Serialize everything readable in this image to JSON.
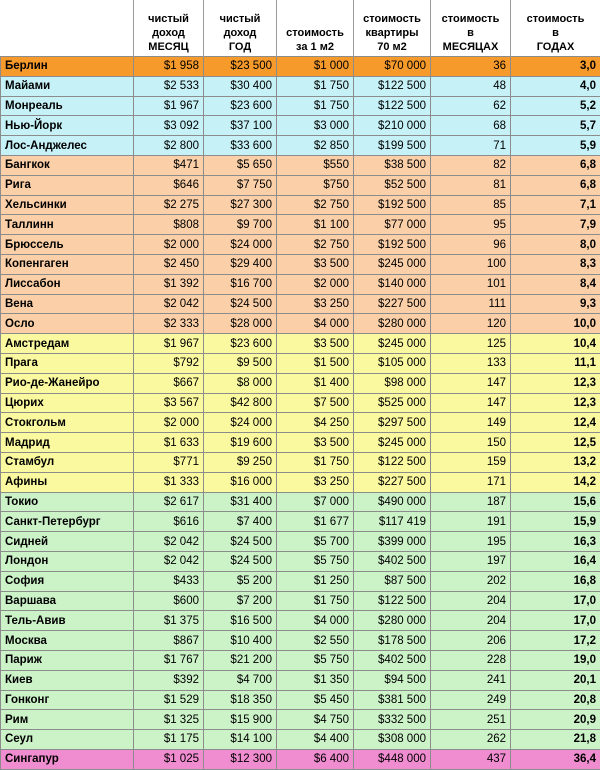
{
  "headers": {
    "city": "",
    "net_month": "чистый\nдоход\nМЕСЯЦ",
    "net_year": "чистый\nдоход\nГОД",
    "price_m2": "стоимость\nза 1 м2",
    "price_flat": "стоимость\nквартиры\n70 м2",
    "months": "стоимость\nв\nМЕСЯЦАХ",
    "years": "стоимость\nв\nГОДАХ"
  },
  "colors": {
    "orange": "#f79a2c",
    "cyan": "#c5f1f7",
    "peach": "#fbcfa7",
    "yellow": "#fbf9a0",
    "green": "#ccf2c8",
    "pink": "#f08cd0"
  },
  "rows": [
    {
      "city": "Берлин",
      "net_month": "$1 958",
      "net_year": "$23 500",
      "price_m2": "$1 000",
      "price_flat": "$70 000",
      "months": "36",
      "years": "3,0",
      "band": "orange"
    },
    {
      "city": "Майами",
      "net_month": "$2 533",
      "net_year": "$30 400",
      "price_m2": "$1 750",
      "price_flat": "$122 500",
      "months": "48",
      "years": "4,0",
      "band": "cyan"
    },
    {
      "city": "Монреаль",
      "net_month": "$1 967",
      "net_year": "$23 600",
      "price_m2": "$1 750",
      "price_flat": "$122 500",
      "months": "62",
      "years": "5,2",
      "band": "cyan"
    },
    {
      "city": "Нью-Йорк",
      "net_month": "$3 092",
      "net_year": "$37 100",
      "price_m2": "$3 000",
      "price_flat": "$210 000",
      "months": "68",
      "years": "5,7",
      "band": "cyan"
    },
    {
      "city": "Лос-Анджелес",
      "net_month": "$2 800",
      "net_year": "$33 600",
      "price_m2": "$2 850",
      "price_flat": "$199 500",
      "months": "71",
      "years": "5,9",
      "band": "cyan"
    },
    {
      "city": "Бангкок",
      "net_month": "$471",
      "net_year": "$5 650",
      "price_m2": "$550",
      "price_flat": "$38 500",
      "months": "82",
      "years": "6,8",
      "band": "peach"
    },
    {
      "city": "Рига",
      "net_month": "$646",
      "net_year": "$7 750",
      "price_m2": "$750",
      "price_flat": "$52 500",
      "months": "81",
      "years": "6,8",
      "band": "peach"
    },
    {
      "city": "Хельсинки",
      "net_month": "$2 275",
      "net_year": "$27 300",
      "price_m2": "$2 750",
      "price_flat": "$192 500",
      "months": "85",
      "years": "7,1",
      "band": "peach"
    },
    {
      "city": "Таллинн",
      "net_month": "$808",
      "net_year": "$9 700",
      "price_m2": "$1 100",
      "price_flat": "$77 000",
      "months": "95",
      "years": "7,9",
      "band": "peach"
    },
    {
      "city": "Брюссель",
      "net_month": "$2 000",
      "net_year": "$24 000",
      "price_m2": "$2 750",
      "price_flat": "$192 500",
      "months": "96",
      "years": "8,0",
      "band": "peach"
    },
    {
      "city": "Копенгаген",
      "net_month": "$2 450",
      "net_year": "$29 400",
      "price_m2": "$3 500",
      "price_flat": "$245 000",
      "months": "100",
      "years": "8,3",
      "band": "peach"
    },
    {
      "city": "Лиссабон",
      "net_month": "$1 392",
      "net_year": "$16 700",
      "price_m2": "$2 000",
      "price_flat": "$140 000",
      "months": "101",
      "years": "8,4",
      "band": "peach"
    },
    {
      "city": "Вена",
      "net_month": "$2 042",
      "net_year": "$24 500",
      "price_m2": "$3 250",
      "price_flat": "$227 500",
      "months": "111",
      "years": "9,3",
      "band": "peach"
    },
    {
      "city": "Осло",
      "net_month": "$2 333",
      "net_year": "$28 000",
      "price_m2": "$4 000",
      "price_flat": "$280 000",
      "months": "120",
      "years": "10,0",
      "band": "peach"
    },
    {
      "city": "Амстредам",
      "net_month": "$1 967",
      "net_year": "$23 600",
      "price_m2": "$3 500",
      "price_flat": "$245 000",
      "months": "125",
      "years": "10,4",
      "band": "yellow"
    },
    {
      "city": "Прага",
      "net_month": "$792",
      "net_year": "$9 500",
      "price_m2": "$1 500",
      "price_flat": "$105 000",
      "months": "133",
      "years": "11,1",
      "band": "yellow"
    },
    {
      "city": "Рио-де-Жанейро",
      "net_month": "$667",
      "net_year": "$8 000",
      "price_m2": "$1 400",
      "price_flat": "$98 000",
      "months": "147",
      "years": "12,3",
      "band": "yellow"
    },
    {
      "city": "Цюрих",
      "net_month": "$3 567",
      "net_year": "$42 800",
      "price_m2": "$7 500",
      "price_flat": "$525 000",
      "months": "147",
      "years": "12,3",
      "band": "yellow"
    },
    {
      "city": "Стокгольм",
      "net_month": "$2 000",
      "net_year": "$24 000",
      "price_m2": "$4 250",
      "price_flat": "$297 500",
      "months": "149",
      "years": "12,4",
      "band": "yellow"
    },
    {
      "city": "Мадрид",
      "net_month": "$1 633",
      "net_year": "$19 600",
      "price_m2": "$3 500",
      "price_flat": "$245 000",
      "months": "150",
      "years": "12,5",
      "band": "yellow"
    },
    {
      "city": "Стамбул",
      "net_month": "$771",
      "net_year": "$9 250",
      "price_m2": "$1 750",
      "price_flat": "$122 500",
      "months": "159",
      "years": "13,2",
      "band": "yellow"
    },
    {
      "city": "Афины",
      "net_month": "$1 333",
      "net_year": "$16 000",
      "price_m2": "$3 250",
      "price_flat": "$227 500",
      "months": "171",
      "years": "14,2",
      "band": "yellow"
    },
    {
      "city": "Токио",
      "net_month": "$2 617",
      "net_year": "$31 400",
      "price_m2": "$7 000",
      "price_flat": "$490 000",
      "months": "187",
      "years": "15,6",
      "band": "green"
    },
    {
      "city": "Санкт-Петербург",
      "net_month": "$616",
      "net_year": "$7 400",
      "price_m2": "$1 677",
      "price_flat": "$117 419",
      "months": "191",
      "years": "15,9",
      "band": "green"
    },
    {
      "city": "Сидней",
      "net_month": "$2 042",
      "net_year": "$24 500",
      "price_m2": "$5 700",
      "price_flat": "$399 000",
      "months": "195",
      "years": "16,3",
      "band": "green"
    },
    {
      "city": "Лондон",
      "net_month": "$2 042",
      "net_year": "$24 500",
      "price_m2": "$5 750",
      "price_flat": "$402 500",
      "months": "197",
      "years": "16,4",
      "band": "green"
    },
    {
      "city": "София",
      "net_month": "$433",
      "net_year": "$5 200",
      "price_m2": "$1 250",
      "price_flat": "$87 500",
      "months": "202",
      "years": "16,8",
      "band": "green"
    },
    {
      "city": "Варшава",
      "net_month": "$600",
      "net_year": "$7 200",
      "price_m2": "$1 750",
      "price_flat": "$122 500",
      "months": "204",
      "years": "17,0",
      "band": "green"
    },
    {
      "city": "Тель-Авив",
      "net_month": "$1 375",
      "net_year": "$16 500",
      "price_m2": "$4 000",
      "price_flat": "$280 000",
      "months": "204",
      "years": "17,0",
      "band": "green"
    },
    {
      "city": "Москва",
      "net_month": "$867",
      "net_year": "$10 400",
      "price_m2": "$2 550",
      "price_flat": "$178 500",
      "months": "206",
      "years": "17,2",
      "band": "green"
    },
    {
      "city": "Париж",
      "net_month": "$1 767",
      "net_year": "$21 200",
      "price_m2": "$5 750",
      "price_flat": "$402 500",
      "months": "228",
      "years": "19,0",
      "band": "green"
    },
    {
      "city": "Киев",
      "net_month": "$392",
      "net_year": "$4 700",
      "price_m2": "$1 350",
      "price_flat": "$94 500",
      "months": "241",
      "years": "20,1",
      "band": "green"
    },
    {
      "city": "Гонконг",
      "net_month": "$1 529",
      "net_year": "$18 350",
      "price_m2": "$5 450",
      "price_flat": "$381 500",
      "months": "249",
      "years": "20,8",
      "band": "green"
    },
    {
      "city": "Рим",
      "net_month": "$1 325",
      "net_year": "$15 900",
      "price_m2": "$4 750",
      "price_flat": "$332 500",
      "months": "251",
      "years": "20,9",
      "band": "green"
    },
    {
      "city": "Сеул",
      "net_month": "$1 175",
      "net_year": "$14 100",
      "price_m2": "$4 400",
      "price_flat": "$308 000",
      "months": "262",
      "years": "21,8",
      "band": "green"
    },
    {
      "city": "Сингапур",
      "net_month": "$1 025",
      "net_year": "$12 300",
      "price_m2": "$6 400",
      "price_flat": "$448 000",
      "months": "437",
      "years": "36,4",
      "band": "pink"
    }
  ]
}
